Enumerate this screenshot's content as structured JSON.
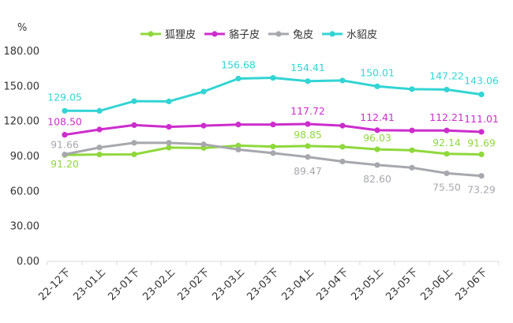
{
  "chart_data": {
    "type": "line",
    "unit_label": "%",
    "ylim": [
      0,
      180
    ],
    "yticks": [
      "180.00",
      "150.00",
      "120.00",
      "90.00",
      "60.00",
      "30.00",
      "0.00"
    ],
    "yticks_values": [
      180,
      150,
      120,
      90,
      60,
      30,
      0
    ],
    "categories": [
      "22-12下",
      "23-01上",
      "23-01下",
      "23-02上",
      "23-02下",
      "23-03上",
      "23-03下",
      "23-04上",
      "23-04下",
      "23-05上",
      "23-05下",
      "23-06上",
      "23-06下"
    ],
    "legend_position": "top-center",
    "grid": false,
    "series": [
      {
        "name": "狐狸皮",
        "color": "#8fd83c",
        "values": [
          91.2,
          91.6,
          91.7,
          97.5,
          97.2,
          99.2,
          98.4,
          98.85,
          98.2,
          96.03,
          95.3,
          92.14,
          91.69
        ],
        "labels": [
          {
            "index": 0,
            "text": "91.20"
          },
          {
            "index": 7,
            "text": "98.85"
          },
          {
            "index": 9,
            "text": "96.03"
          },
          {
            "index": 11,
            "text": "92.14"
          },
          {
            "index": 12,
            "text": "91.69"
          }
        ]
      },
      {
        "name": "貉子皮",
        "color": "#cc2dcc",
        "values": [
          108.5,
          113.0,
          116.8,
          115.3,
          116.3,
          117.3,
          117.3,
          117.72,
          116.3,
          112.41,
          112.2,
          112.21,
          111.01
        ],
        "labels": [
          {
            "index": 0,
            "text": "108.50"
          },
          {
            "index": 7,
            "text": "117.72"
          },
          {
            "index": 9,
            "text": "112.41"
          },
          {
            "index": 11,
            "text": "112.21"
          },
          {
            "index": 12,
            "text": "111.01"
          }
        ]
      },
      {
        "name": "兔皮",
        "color": "#a6a8ad",
        "values": [
          91.66,
          97.6,
          101.6,
          101.6,
          100.3,
          95.8,
          92.8,
          89.47,
          85.6,
          82.6,
          80.3,
          75.5,
          73.29
        ],
        "labels": [
          {
            "index": 0,
            "text": "91.66"
          },
          {
            "index": 7,
            "text": "89.47"
          },
          {
            "index": 9,
            "text": "82.60"
          },
          {
            "index": 11,
            "text": "75.50"
          },
          {
            "index": 12,
            "text": "73.29"
          }
        ]
      },
      {
        "name": "水貂皮",
        "color": "#33d4d4",
        "values": [
          129.05,
          129.0,
          137.3,
          137.1,
          145.5,
          156.68,
          157.3,
          154.41,
          155.0,
          150.01,
          147.6,
          147.22,
          143.06
        ],
        "labels": [
          {
            "index": 0,
            "text": "129.05"
          },
          {
            "index": 5,
            "text": "156.68"
          },
          {
            "index": 7,
            "text": "154.41"
          },
          {
            "index": 9,
            "text": "150.01"
          },
          {
            "index": 11,
            "text": "147.22"
          },
          {
            "index": 12,
            "text": "143.06"
          }
        ]
      }
    ]
  }
}
